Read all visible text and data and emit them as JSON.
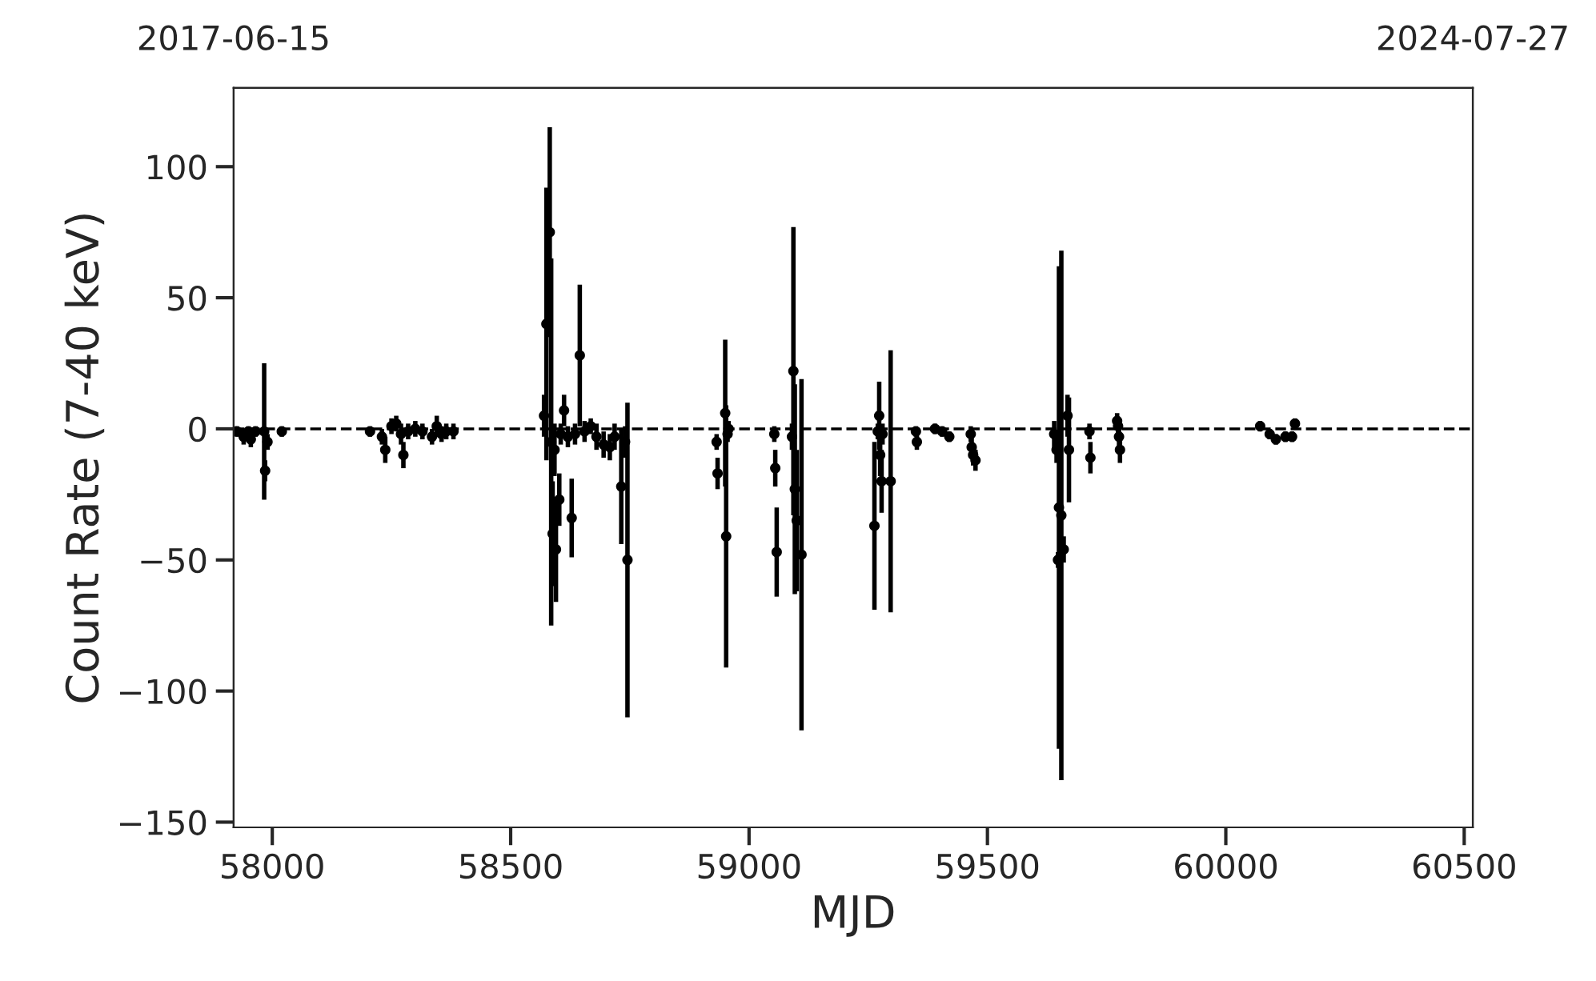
{
  "chart_data": {
    "type": "scatter",
    "xlabel": "MJD",
    "ylabel": "Count Rate (7-40 keV)",
    "xlim": [
      57919,
      60518
    ],
    "xticks": [
      58000,
      58500,
      59000,
      59500,
      60000,
      60500
    ],
    "ylim": [
      -152,
      130
    ],
    "yticks": [
      -150,
      -100,
      -50,
      0,
      50,
      100
    ],
    "x2lim": [
      "2017-06-15",
      "2024-07-27"
    ],
    "x2ticks": [
      "2017-06-15",
      "2024-07-27"
    ],
    "grid": false,
    "legend": false,
    "marker": "circle",
    "ref_lines": [
      {
        "axis": "y",
        "value": 0,
        "color": "#000000",
        "line_style": "dashed"
      }
    ],
    "series": [
      {
        "color": "#000000",
        "x": [
          57926,
          57940,
          57950,
          57955,
          57965,
          57983,
          57985,
          57990,
          58020,
          58205,
          58230,
          58237,
          58250,
          58260,
          58270,
          58275,
          58285,
          58300,
          58315,
          58335,
          58345,
          58355,
          58365,
          58380,
          58570,
          58575,
          58582,
          58585,
          58588,
          58592,
          58595,
          58602,
          58605,
          58612,
          58620,
          58628,
          58635,
          58645,
          58655,
          58668,
          58680,
          58695,
          58708,
          58718,
          58732,
          58740,
          58745,
          58932,
          58934,
          58950,
          58952,
          58955,
          58957,
          59053,
          59055,
          59058,
          59090,
          59093,
          59096,
          59100,
          59110,
          59263,
          59270,
          59273,
          59275,
          59278,
          59280,
          59297,
          59350,
          59352,
          59390,
          59405,
          59420,
          59465,
          59467,
          59470,
          59475,
          59640,
          59645,
          59648,
          59650,
          59655,
          59660,
          59668,
          59671,
          59714,
          59716,
          59772,
          59774,
          59776,
          59778,
          60072,
          60092,
          60105,
          60125,
          60139,
          60145
        ],
        "values": [
          -1,
          -3,
          -1,
          -4,
          -1,
          -1,
          -16,
          -5,
          -1,
          -1,
          -3,
          -8,
          1,
          2,
          -2,
          -10,
          -1,
          0,
          -1,
          -3,
          1,
          -2,
          -1,
          -1,
          5,
          40,
          75,
          -5,
          -40,
          -8,
          -46,
          -27,
          -2,
          7,
          -3,
          -34,
          -2,
          28,
          -1,
          1,
          -3,
          -6,
          -7,
          -3,
          -22,
          -5,
          -50,
          -5,
          -17,
          6,
          -41,
          -2,
          0,
          -2,
          -15,
          -47,
          -3,
          22,
          -23,
          -35,
          -48,
          -37,
          -1,
          5,
          -10,
          -20,
          -2,
          -20,
          -1,
          -5,
          0,
          -1,
          -3,
          -2,
          -7,
          -10,
          -12,
          -2,
          -8,
          -50,
          -30,
          -33,
          -46,
          5,
          -8,
          -1,
          -11,
          3,
          1,
          -3,
          -8,
          1,
          -2,
          -4,
          -3,
          -3,
          2
        ],
        "errors": [
          2,
          3,
          2,
          3,
          2,
          26,
          4,
          3,
          2,
          2,
          3,
          5,
          3,
          3,
          4,
          5,
          3,
          3,
          3,
          3,
          4,
          3,
          3,
          3,
          8,
          52,
          40,
          70,
          20,
          10,
          20,
          10,
          4,
          6,
          4,
          15,
          4,
          27,
          4,
          3,
          5,
          5,
          5,
          5,
          22,
          6,
          60,
          3,
          6,
          28,
          50,
          3,
          3,
          3,
          7,
          17,
          5,
          55,
          40,
          27,
          67,
          32,
          3,
          13,
          8,
          12,
          4,
          50,
          2,
          3,
          2,
          2,
          2,
          3,
          4,
          4,
          4,
          5,
          5,
          3,
          92,
          101,
          5,
          8,
          20,
          3,
          6,
          3,
          3,
          4,
          5,
          2,
          2,
          2,
          2,
          2,
          2
        ]
      }
    ]
  }
}
